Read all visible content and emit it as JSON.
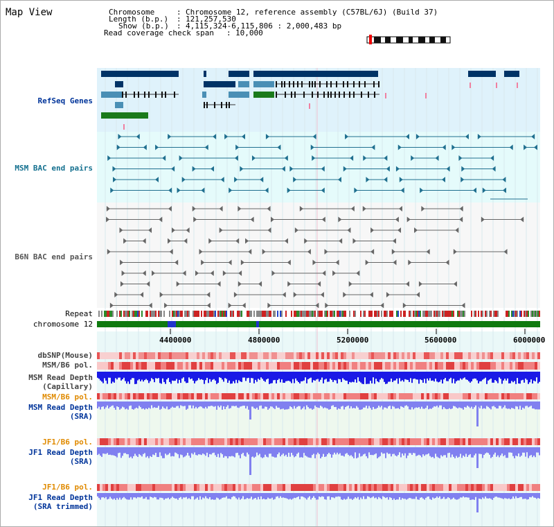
{
  "title": "Map View",
  "info": {
    "chromosome_key": "Chromosome",
    "chromosome_val": "Chromosome 12, reference assembly (C57BL/6J) (Build 37)",
    "length_key": "Length (b.p.)",
    "length_val": "121,257,530",
    "show_key": "Show (b.p.)",
    "show_val": "4,115,324-6,115,806 : 2,000,483 bp",
    "coverage_key": "Read coverage check span",
    "coverage_val": "10,000"
  },
  "tracks": {
    "refseq": "RefSeq Genes",
    "msm_bac": "MSM BAC end pairs",
    "b6n_bac": "B6N BAC end pairs",
    "repeat": "Repeat",
    "chromosome": "chromosome 12",
    "dbsnp": "dbSNP(Mouse)",
    "msm_b6_pol": "MSM/B6 pol.",
    "msm_read_cap_1": "MSM Read Depth",
    "msm_read_cap_2": "(Capillary)",
    "msm_b6_pol2": "MSM/B6 pol.",
    "msm_read_sra_1": "MSM Read Depth",
    "msm_read_sra_2": "(SRA)",
    "jf1_b6_pol": "JF1/B6 pol.",
    "jf1_read_sra_1": "JF1 Read Depth",
    "jf1_read_sra_2": "(SRA)",
    "jf1_b6_pol2": "JF1/B6 pol.",
    "jf1_read_trim_1": "JF1 Read Depth",
    "jf1_read_trim_2": "(SRA trimmed)"
  },
  "axis": {
    "ticks": [
      "4400000",
      "4800000",
      "5200000",
      "5600000",
      "6000000"
    ]
  },
  "colors": {
    "refseq_bg": "#dff2fb",
    "msm_bac_bg": "#e5fbfb",
    "b6n_bg": "#f7f7f7",
    "gene_dark": "#003366",
    "gene_mid": "#4a8fb5",
    "gene_green": "#1a7a1a",
    "msm_bac_line": "#1f6f8f",
    "b6n_line": "#666666",
    "chromosome_green": "#0f7a0f",
    "read_depth_cap": "#1a1ae6",
    "read_depth_sra": "#8080f0",
    "pol_red": "#e05050",
    "label_blue": "#00349a",
    "label_teal": "#14708f",
    "label_orange": "#e08a00",
    "label_gray": "#444444"
  }
}
